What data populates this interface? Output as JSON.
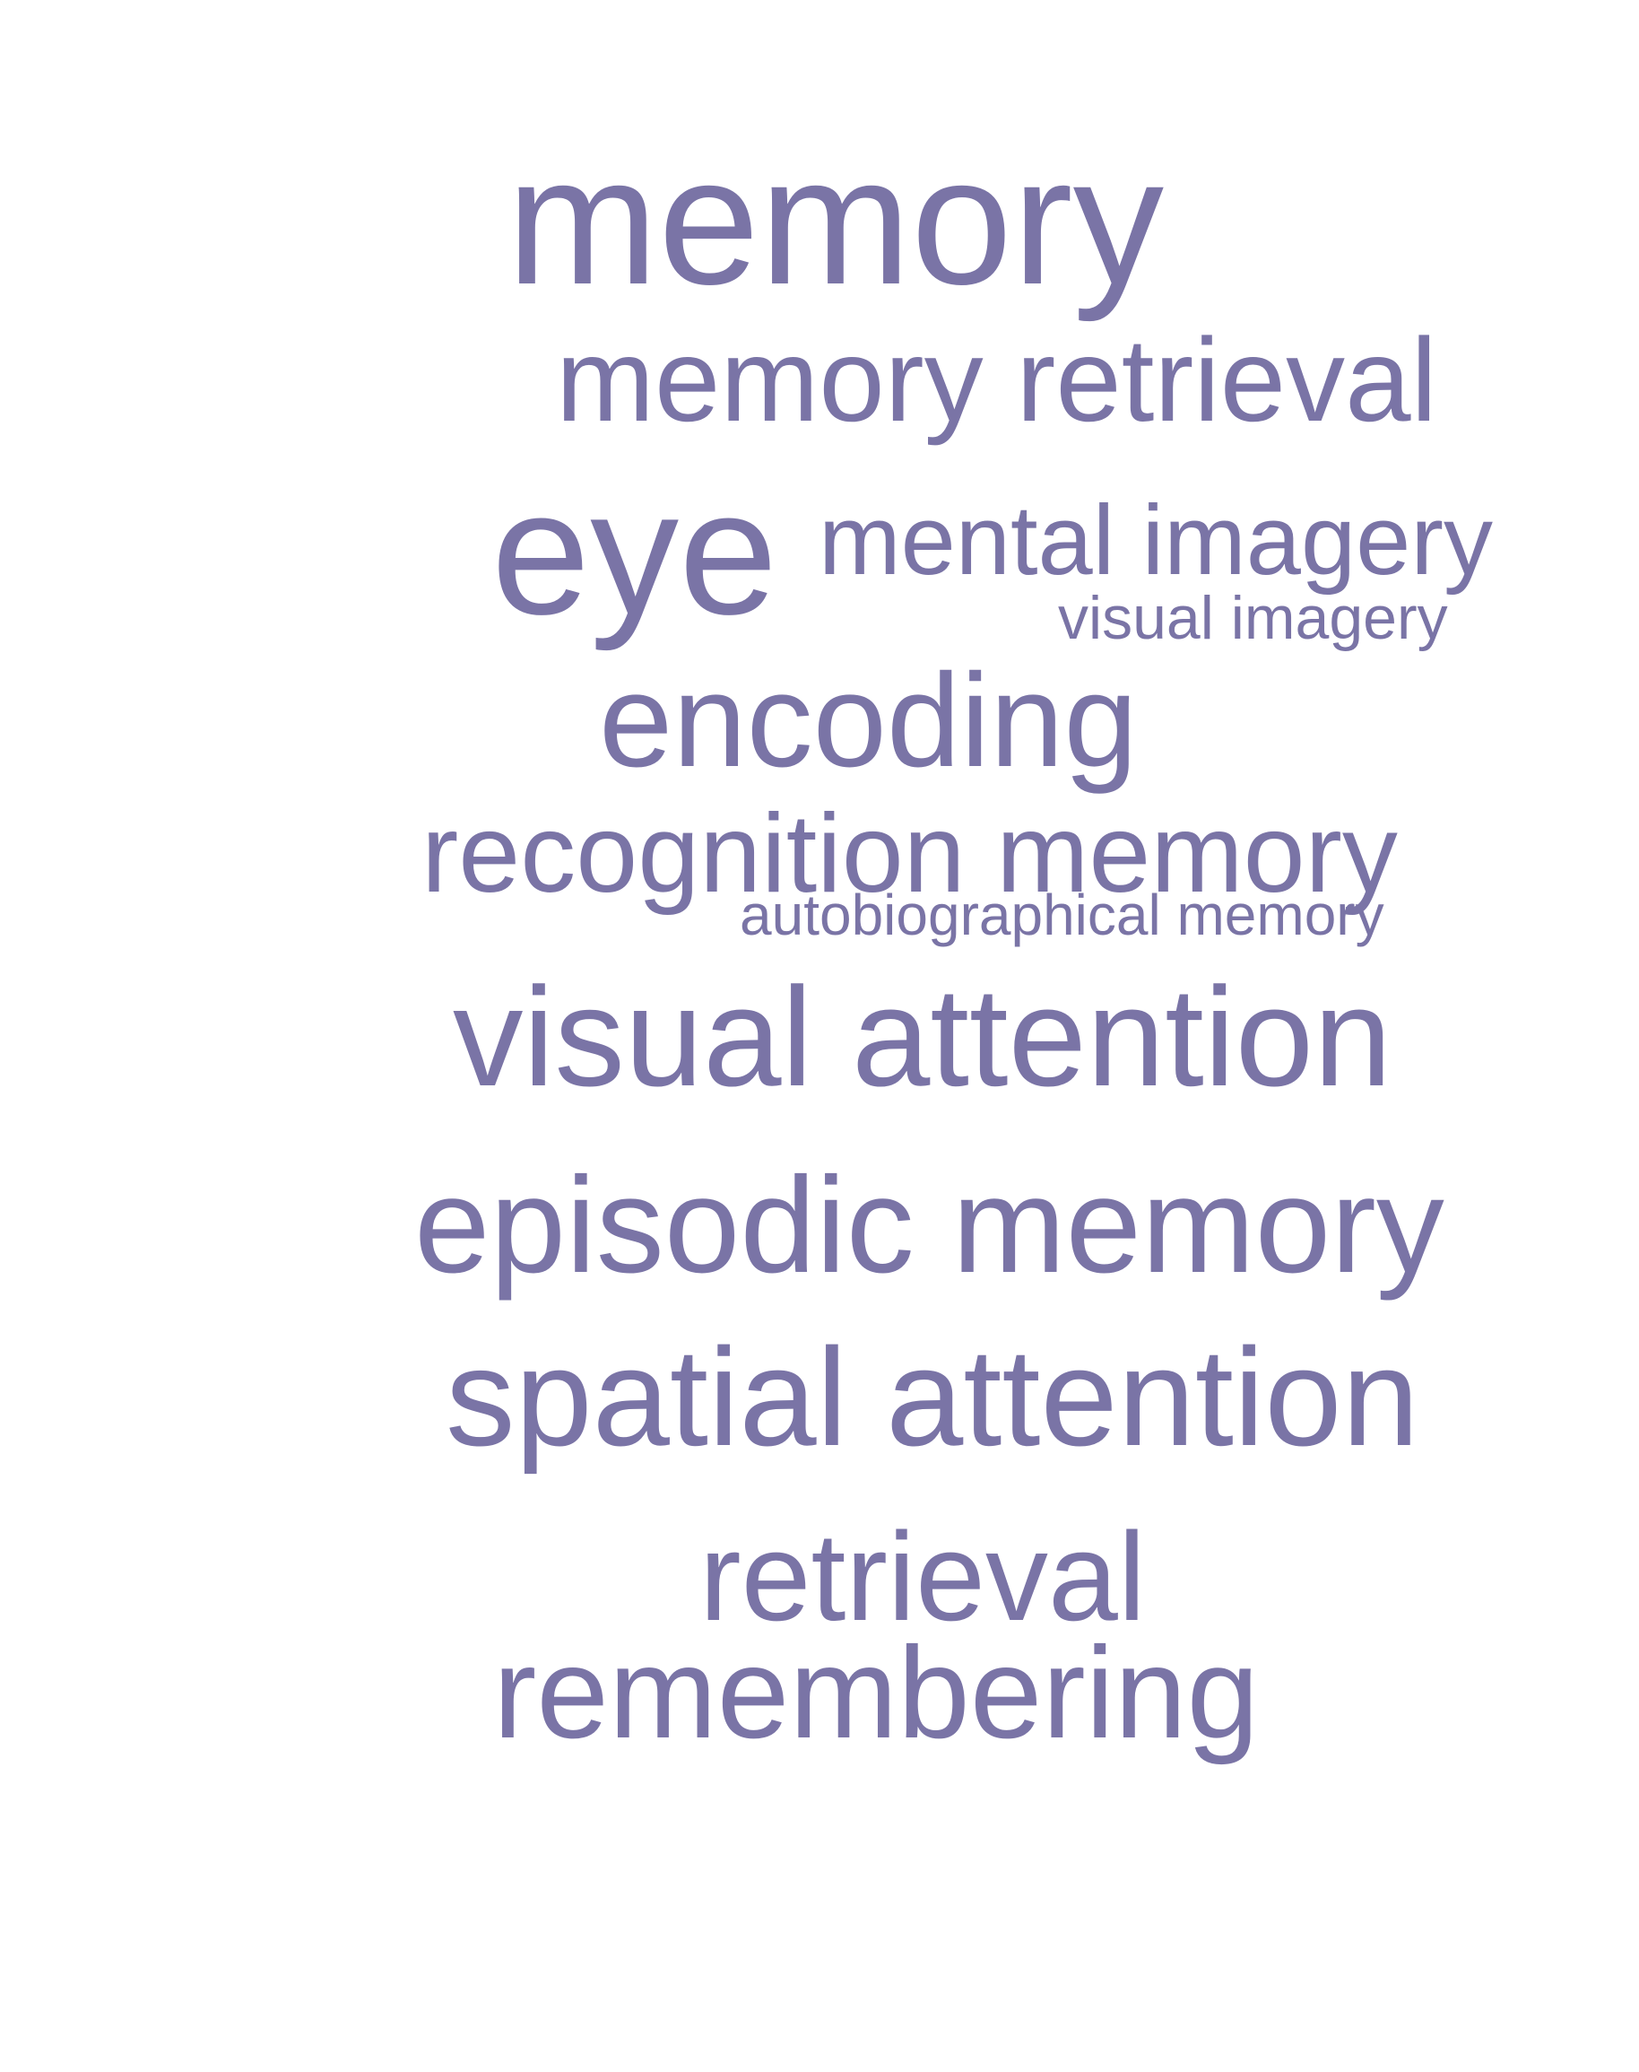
{
  "theme": {
    "word_color": "#7a74a6",
    "background": "#ffffff"
  },
  "words": {
    "memory": "memory",
    "memory_retrieval": "memory retrieval",
    "eye": "eye",
    "mental_imagery": "mental imagery",
    "visual_imagery": "visual imagery",
    "encoding": "encoding",
    "recognition_memory": "recognition memory",
    "autobiographical_memory": "autobiographical memory",
    "visual_attention": "visual attention",
    "episodic_memory": "episodic memory",
    "spatial_attention": "spatial attention",
    "retrieval": "retrieval",
    "remembering": "remembering"
  }
}
